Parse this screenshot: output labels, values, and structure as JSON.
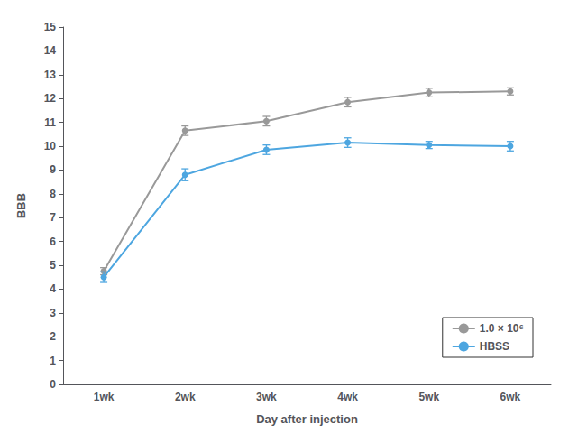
{
  "chart_data": {
    "type": "line",
    "xlabel": "Day after injection",
    "ylabel": "BBB",
    "categories": [
      "1wk",
      "2wk",
      "3wk",
      "4wk",
      "5wk",
      "6wk"
    ],
    "series": [
      {
        "name": "1.0 × 10⁶",
        "color": "#999999",
        "values": [
          4.75,
          10.65,
          11.05,
          11.85,
          12.25,
          12.3
        ],
        "errors": [
          0.15,
          0.2,
          0.2,
          0.2,
          0.18,
          0.15
        ]
      },
      {
        "name": "HBSS",
        "color": "#4DA6E0",
        "values": [
          4.5,
          8.8,
          9.85,
          10.15,
          10.05,
          10.0
        ],
        "errors": [
          0.22,
          0.25,
          0.2,
          0.2,
          0.15,
          0.2
        ]
      }
    ],
    "ylim": [
      0,
      15
    ],
    "yticks": [
      0,
      1,
      2,
      3,
      4,
      5,
      6,
      7,
      8,
      9,
      10,
      11,
      12,
      13,
      14,
      15
    ],
    "grid": false,
    "legend": "lower right",
    "marker": "circle"
  }
}
